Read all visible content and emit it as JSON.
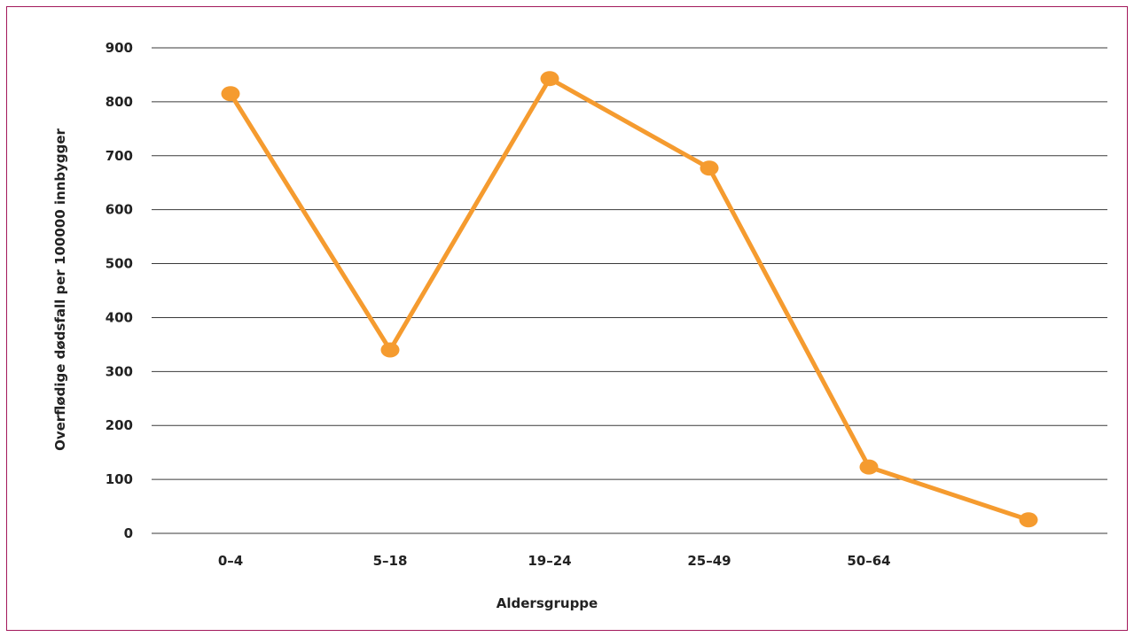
{
  "chart_data": {
    "type": "line",
    "title": "",
    "xlabel": "Aldersgruppe",
    "ylabel": "Overflødige dødsfall per 100000 innbygger",
    "categories": [
      "0–4",
      "5–18",
      "19–24",
      "25–49",
      "50–64",
      ""
    ],
    "series": [
      {
        "values": [
          815,
          340,
          843,
          677,
          123,
          25
        ]
      }
    ],
    "ylim": [
      0,
      900
    ],
    "yticks": [
      0,
      100,
      200,
      300,
      400,
      500,
      600,
      700,
      800,
      900
    ],
    "grid": true,
    "legend": "none",
    "line_color": "#f59b2f",
    "frame_color": "#a3195b"
  }
}
